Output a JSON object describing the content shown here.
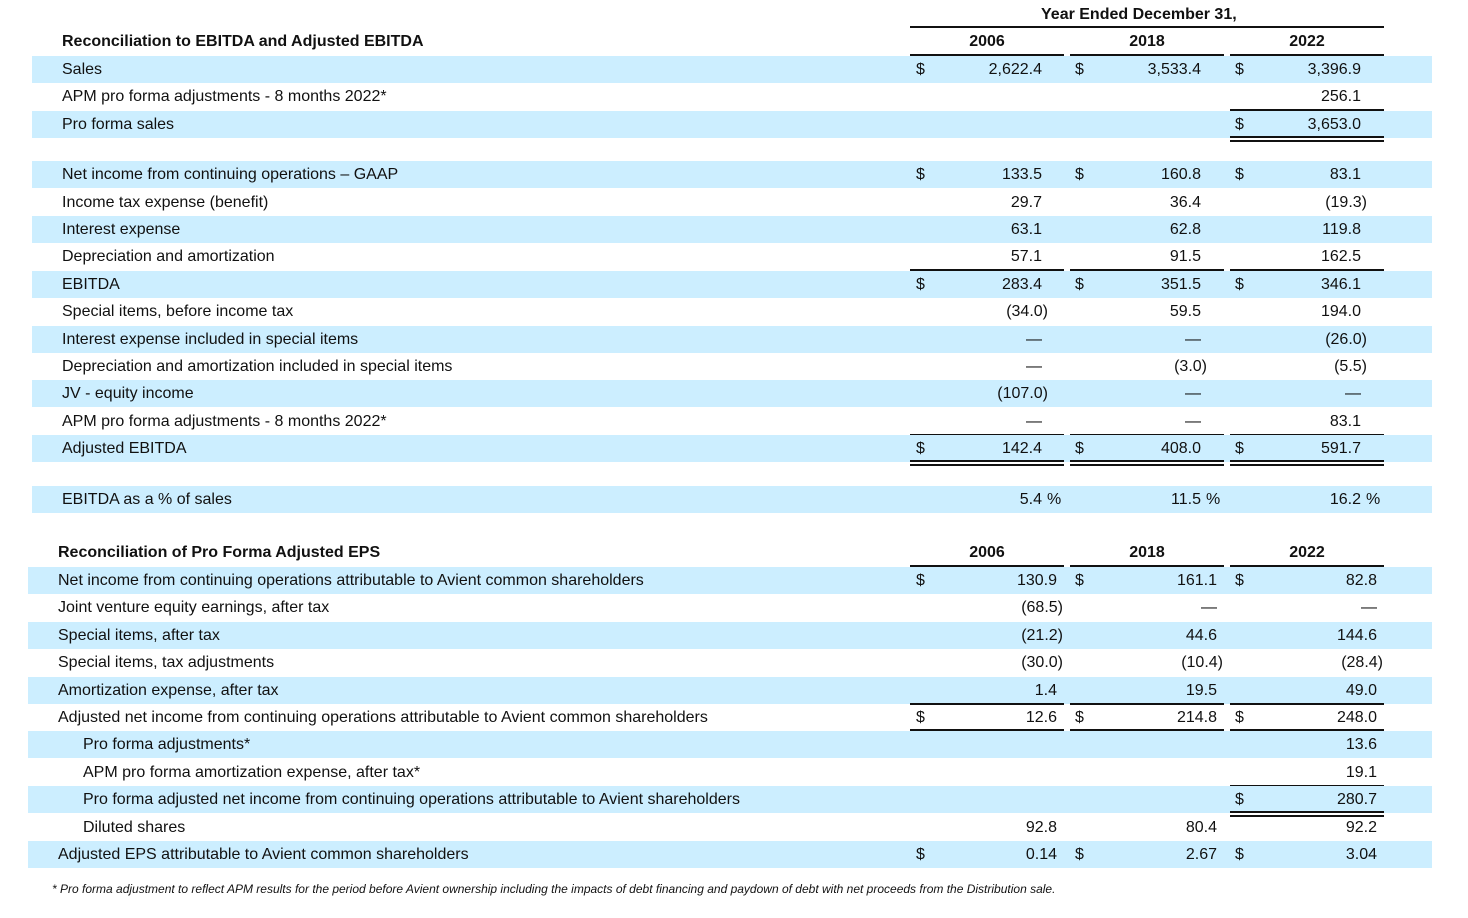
{
  "header": {
    "period": "Year Ended December 31,"
  },
  "ebitda": {
    "title": "Reconciliation to EBITDA and Adjusted EBITDA",
    "years": [
      "2006",
      "2018",
      "2022"
    ],
    "rows": [
      {
        "label": "Sales",
        "banded": true,
        "dollar": [
          true,
          true,
          true
        ],
        "values": [
          "2,622.4",
          "3,533.4",
          "3,396.9"
        ]
      },
      {
        "label": "APM pro forma adjustments - 8 months 2022*",
        "banded": false,
        "dollar": [
          false,
          false,
          false
        ],
        "values": [
          "",
          "",
          "256.1"
        ],
        "underline": [
          null,
          null,
          "single"
        ]
      },
      {
        "label": "Pro forma sales",
        "banded": true,
        "dollar": [
          false,
          false,
          true
        ],
        "values": [
          "",
          "",
          "3,653.0"
        ],
        "underline": [
          null,
          null,
          "double"
        ]
      },
      {
        "gap": true
      },
      {
        "label": "Net income from continuing operations – GAAP",
        "banded": true,
        "dollar": [
          true,
          true,
          true
        ],
        "values": [
          "133.5",
          "160.8",
          "83.1"
        ]
      },
      {
        "label": "Income tax expense (benefit)",
        "banded": false,
        "dollar": [
          false,
          false,
          false
        ],
        "values": [
          "29.7",
          "36.4",
          "(19.3)"
        ]
      },
      {
        "label": "Interest expense",
        "banded": true,
        "dollar": [
          false,
          false,
          false
        ],
        "values": [
          "63.1",
          "62.8",
          "119.8"
        ]
      },
      {
        "label": "Depreciation and amortization",
        "banded": false,
        "dollar": [
          false,
          false,
          false
        ],
        "values": [
          "57.1",
          "91.5",
          "162.5"
        ],
        "underline": [
          "single",
          "single",
          "single"
        ]
      },
      {
        "label": "EBITDA",
        "banded": true,
        "dollar": [
          true,
          true,
          true
        ],
        "values": [
          "283.4",
          "351.5",
          "346.1"
        ]
      },
      {
        "label": "Special items, before income tax",
        "banded": false,
        "dollar": [
          false,
          false,
          false
        ],
        "values": [
          "(34.0)",
          "59.5",
          "194.0"
        ]
      },
      {
        "label": "Interest expense included in special items",
        "banded": true,
        "dollar": [
          false,
          false,
          false
        ],
        "values": [
          "—",
          "—",
          "(26.0)"
        ]
      },
      {
        "label": "Depreciation and amortization included in special items",
        "banded": false,
        "dollar": [
          false,
          false,
          false
        ],
        "values": [
          "—",
          "(3.0)",
          "(5.5)"
        ]
      },
      {
        "label": "JV - equity income",
        "banded": true,
        "dollar": [
          false,
          false,
          false
        ],
        "values": [
          "(107.0)",
          "—",
          "—"
        ]
      },
      {
        "label": "APM pro forma adjustments - 8 months 2022*",
        "banded": false,
        "dollar": [
          false,
          false,
          false
        ],
        "values": [
          "—",
          "—",
          "83.1"
        ],
        "underline": [
          "single",
          "single",
          "single"
        ]
      },
      {
        "label": "Adjusted EBITDA",
        "banded": true,
        "dollar": [
          true,
          true,
          true
        ],
        "values": [
          "142.4",
          "408.0",
          "591.7"
        ],
        "underline": [
          "double",
          "double",
          "double"
        ]
      },
      {
        "gap": true
      },
      {
        "label": "EBITDA as a % of sales",
        "banded": true,
        "dollar": [
          false,
          false,
          false
        ],
        "values": [
          "5.4",
          "11.5",
          "16.2"
        ],
        "percent": "%"
      }
    ]
  },
  "eps": {
    "title": "Reconciliation of Pro Forma Adjusted EPS",
    "years": [
      "2006",
      "2018",
      "2022"
    ],
    "rows": [
      {
        "label": "Net income from continuing operations attributable to Avient common shareholders",
        "banded": true,
        "dollar": [
          true,
          true,
          true
        ],
        "values": [
          "130.9",
          "161.1",
          "82.8"
        ]
      },
      {
        "label": "Joint venture equity earnings, after tax",
        "banded": false,
        "dollar": [
          false,
          false,
          false
        ],
        "values": [
          "(68.5)",
          "—",
          "—"
        ]
      },
      {
        "label": "Special items, after tax",
        "banded": true,
        "dollar": [
          false,
          false,
          false
        ],
        "values": [
          "(21.2)",
          "44.6",
          "144.6"
        ]
      },
      {
        "label": "Special items, tax adjustments",
        "banded": false,
        "dollar": [
          false,
          false,
          false
        ],
        "values": [
          "(30.0)",
          "(10.4)",
          "(28.4)"
        ]
      },
      {
        "label": "Amortization expense, after tax",
        "banded": true,
        "dollar": [
          false,
          false,
          false
        ],
        "values": [
          "1.4",
          "19.5",
          "49.0"
        ],
        "underline": [
          "single",
          "single",
          "single"
        ]
      },
      {
        "label": "Adjusted net income from continuing operations attributable to Avient common shareholders",
        "banded": false,
        "dollar": [
          true,
          true,
          true
        ],
        "values": [
          "12.6",
          "214.8",
          "248.0"
        ],
        "underline": [
          "double",
          "double",
          "double"
        ]
      },
      {
        "label": "Pro forma adjustments*",
        "indent": true,
        "banded": true,
        "dollar": [
          false,
          false,
          false
        ],
        "values": [
          "",
          "",
          "13.6"
        ]
      },
      {
        "label": "APM pro forma amortization expense, after tax*",
        "indent": true,
        "banded": false,
        "dollar": [
          false,
          false,
          false
        ],
        "values": [
          "",
          "",
          "19.1"
        ],
        "underline": [
          null,
          null,
          "single"
        ]
      },
      {
        "label": "Pro forma adjusted net income from continuing operations attributable to Avient shareholders",
        "indent": true,
        "banded": true,
        "dollar": [
          false,
          false,
          true
        ],
        "values": [
          "",
          "",
          "280.7"
        ],
        "underline": [
          null,
          null,
          "double"
        ]
      },
      {
        "label": "Diluted shares",
        "indent": true,
        "banded": false,
        "dollar": [
          false,
          false,
          false
        ],
        "values": [
          "92.8",
          "80.4",
          "92.2"
        ]
      },
      {
        "label": "Adjusted EPS attributable to Avient common shareholders",
        "banded": true,
        "dollar": [
          true,
          true,
          true
        ],
        "values": [
          "0.14",
          "2.67",
          "3.04"
        ]
      }
    ]
  },
  "footnote": "* Pro forma adjustment to reflect APM results for the period before Avient ownership including the impacts of debt financing and paydown of debt with net proceeds from the Distribution sale.",
  "colors": {
    "band": "#cceeff",
    "rule": "#111111"
  }
}
